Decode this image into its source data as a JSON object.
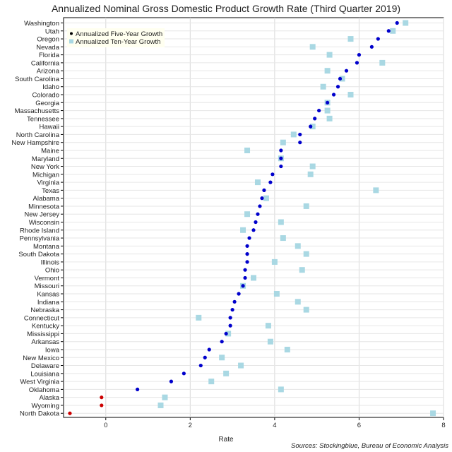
{
  "chart_data": {
    "type": "scatter",
    "title": "Annualized Nominal Gross Domestic Product Growth Rate (Third Quarter 2019)",
    "xlabel": "Rate",
    "xlim": [
      -1.0,
      8.0
    ],
    "x_ticks": [
      "0",
      "2",
      "4",
      "6",
      "8"
    ],
    "grid": true,
    "legend_position": "top-left",
    "source": "Sources: Stockingblue, Bureau of Economic Analysis",
    "colors": {
      "five_year": "#0000cc",
      "five_year_negative": "#cc0000",
      "ten_year": "#a9d8e3"
    },
    "categories": [
      "Washington",
      "Utah",
      "Oregon",
      "Nevada",
      "Florida",
      "California",
      "Arizona",
      "South Carolina",
      "Idaho",
      "Colorado",
      "Georgia",
      "Massachusetts",
      "Tennessee",
      "Hawaii",
      "North Carolina",
      "New Hampshire",
      "Maine",
      "Maryland",
      "New York",
      "Michigan",
      "Virginia",
      "Texas",
      "Alabama",
      "Minnesota",
      "New Jersey",
      "Wisconsin",
      "Rhode Island",
      "Pennsylvania",
      "Montana",
      "South Dakota",
      "Illinois",
      "Ohio",
      "Vermont",
      "Missouri",
      "Kansas",
      "Indiana",
      "Nebraska",
      "Connecticut",
      "Kentucky",
      "Mississippi",
      "Arkansas",
      "Iowa",
      "New Mexico",
      "Delaware",
      "Louisiana",
      "West Virginia",
      "Oklahoma",
      "Alaska",
      "Wyoming",
      "North Dakota"
    ],
    "series": [
      {
        "name": "Annualized Five-Year Growth",
        "marker": "dot",
        "values": [
          6.9,
          6.7,
          6.45,
          6.3,
          6.0,
          5.95,
          5.7,
          5.55,
          5.5,
          5.4,
          5.25,
          5.05,
          4.95,
          4.85,
          4.6,
          4.6,
          4.15,
          4.15,
          4.15,
          3.95,
          3.9,
          3.75,
          3.7,
          3.65,
          3.6,
          3.55,
          3.5,
          3.4,
          3.35,
          3.35,
          3.35,
          3.3,
          3.3,
          3.25,
          3.15,
          3.05,
          3.0,
          2.95,
          2.95,
          2.85,
          2.75,
          2.45,
          2.35,
          2.25,
          1.85,
          1.55,
          0.75,
          -0.1,
          -0.1,
          -0.85
        ]
      },
      {
        "name": "Annualized Ten-Year Growth",
        "marker": "square",
        "values": [
          7.1,
          6.8,
          5.8,
          4.9,
          5.3,
          6.55,
          5.25,
          5.6,
          5.15,
          5.8,
          5.25,
          5.25,
          5.3,
          4.9,
          4.45,
          4.2,
          3.35,
          4.15,
          4.9,
          4.85,
          3.6,
          6.4,
          3.8,
          4.75,
          3.35,
          4.15,
          3.25,
          4.2,
          4.55,
          4.75,
          4.0,
          4.65,
          3.5,
          3.25,
          4.05,
          4.55,
          4.75,
          2.2,
          3.85,
          2.9,
          3.9,
          4.3,
          2.75,
          3.2,
          2.85,
          2.5,
          4.15,
          1.4,
          1.3,
          7.75
        ]
      }
    ]
  }
}
